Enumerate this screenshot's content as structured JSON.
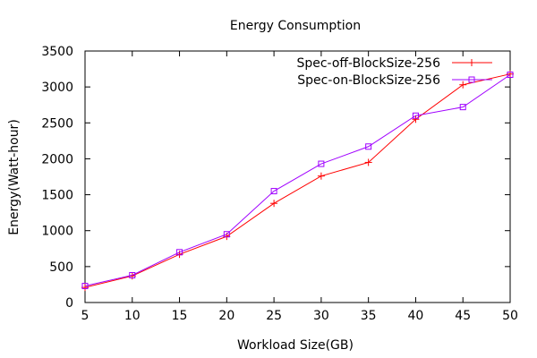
{
  "chart_data": {
    "type": "line",
    "title": "Energy Consumption",
    "xlabel": "Workload Size(GB)",
    "ylabel": "Energy(Watt-hour)",
    "xlim": [
      5,
      50
    ],
    "ylim": [
      0,
      3500
    ],
    "xticks": [
      5,
      10,
      15,
      20,
      25,
      30,
      35,
      40,
      45,
      50
    ],
    "yticks": [
      0,
      500,
      1000,
      1500,
      2000,
      2500,
      3000,
      3500
    ],
    "grid": false,
    "legend_position": "top-right",
    "series": [
      {
        "name": "Spec-off-BlockSize-256",
        "color": "#ff0000",
        "marker": "plus",
        "x": [
          5,
          10,
          15,
          20,
          25,
          30,
          35,
          40,
          45,
          50
        ],
        "y": [
          210,
          370,
          670,
          920,
          1380,
          1760,
          1950,
          2550,
          3030,
          3180
        ]
      },
      {
        "name": "Spec-on-BlockSize-256",
        "color": "#a000ff",
        "marker": "square",
        "x": [
          5,
          10,
          15,
          20,
          25,
          30,
          35,
          40,
          45,
          50
        ],
        "y": [
          230,
          380,
          700,
          950,
          1550,
          1930,
          2170,
          2600,
          2720,
          3170
        ]
      }
    ]
  }
}
